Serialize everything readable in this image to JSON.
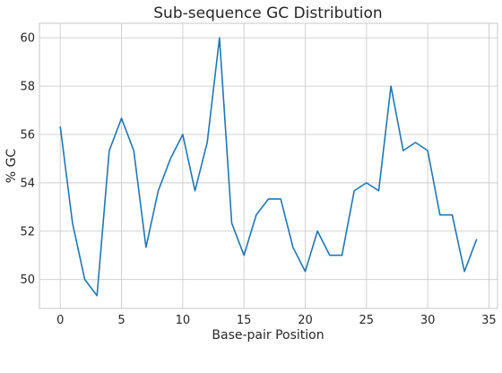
{
  "chart_data": {
    "type": "line",
    "title": "Sub-sequence GC Distribution",
    "xlabel": "Base-pair Position",
    "ylabel": "% GC",
    "xlim": [
      -1.7,
      35.7
    ],
    "ylim": [
      48.8,
      60.6
    ],
    "xticks": [
      0,
      5,
      10,
      15,
      20,
      25,
      30,
      35
    ],
    "yticks": [
      50,
      52,
      54,
      56,
      58,
      60
    ],
    "grid": true,
    "legend": "none",
    "series": [
      {
        "color": "#1f77b4",
        "x": [
          0,
          1,
          2,
          3,
          4,
          5,
          6,
          7,
          8,
          9,
          10,
          11,
          12,
          13,
          14,
          15,
          16,
          17,
          18,
          19,
          20,
          21,
          22,
          23,
          24,
          25,
          26,
          27,
          28,
          29,
          30,
          31,
          32,
          33,
          34
        ],
        "values": [
          56.33,
          52.33,
          50.0,
          49.33,
          55.33,
          56.67,
          55.33,
          51.33,
          53.67,
          55.0,
          56.0,
          53.67,
          55.67,
          60.0,
          52.33,
          51.0,
          52.67,
          53.33,
          53.33,
          51.33,
          50.33,
          52.0,
          51.0,
          51.0,
          53.67,
          54.0,
          53.67,
          58.0,
          55.33,
          55.67,
          55.33,
          52.67,
          52.67,
          50.33,
          51.67
        ]
      }
    ]
  }
}
